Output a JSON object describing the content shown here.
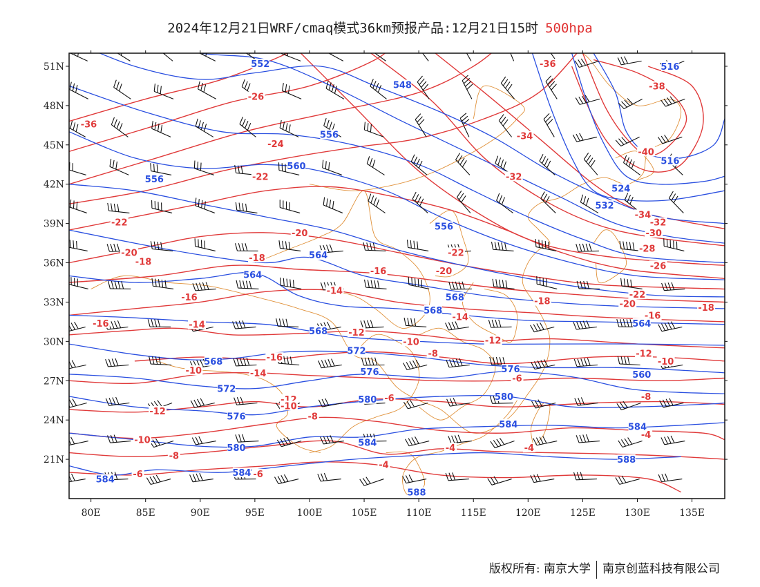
{
  "header": {
    "title": "2024年12月21日WRF/cmaq模式36km预报产品:12月21日15时",
    "level": "500hpa"
  },
  "colors": {
    "height_contour": "#2a4fe0",
    "temperature_contour": "#e03a3a",
    "boundary": "#e0913a",
    "wind_barb": "#111111",
    "level_text": "#e03030"
  },
  "map": {
    "lon_range": [
      78,
      138
    ],
    "lat_range": [
      18,
      52
    ],
    "lon_ticks": [
      {
        "lon": 80,
        "label": "80E"
      },
      {
        "lon": 85,
        "label": "85E"
      },
      {
        "lon": 90,
        "label": "90E"
      },
      {
        "lon": 95,
        "label": "95E"
      },
      {
        "lon": 100,
        "label": "100E"
      },
      {
        "lon": 105,
        "label": "105E"
      },
      {
        "lon": 110,
        "label": "110E"
      },
      {
        "lon": 115,
        "label": "115E"
      },
      {
        "lon": 120,
        "label": "120E"
      },
      {
        "lon": 125,
        "label": "125E"
      },
      {
        "lon": 130,
        "label": "130E"
      },
      {
        "lon": 135,
        "label": "135E"
      }
    ],
    "lat_ticks": [
      {
        "lat": 51,
        "label": "51N"
      },
      {
        "lat": 48,
        "label": "48N"
      },
      {
        "lat": 45,
        "label": "45N"
      },
      {
        "lat": 42,
        "label": "42N"
      },
      {
        "lat": 39,
        "label": "39N"
      },
      {
        "lat": 36,
        "label": "36N"
      },
      {
        "lat": 33,
        "label": "33N"
      },
      {
        "lat": 30,
        "label": "30N"
      },
      {
        "lat": 27,
        "label": "27N"
      },
      {
        "lat": 24,
        "label": "24N"
      },
      {
        "lat": 21,
        "label": "21N"
      }
    ],
    "height_labels": [
      {
        "text": "552",
        "lon": 95.5,
        "lat": 51.2
      },
      {
        "text": "548",
        "lon": 108.5,
        "lat": 49.6
      },
      {
        "text": "516",
        "lon": 133,
        "lat": 51.0
      },
      {
        "text": "556",
        "lon": 101.8,
        "lat": 45.8
      },
      {
        "text": "560",
        "lon": 98.8,
        "lat": 43.4
      },
      {
        "text": "556",
        "lon": 85.8,
        "lat": 42.4
      },
      {
        "text": "516",
        "lon": 133,
        "lat": 43.8
      },
      {
        "text": "524",
        "lon": 128.5,
        "lat": 41.7
      },
      {
        "text": "532",
        "lon": 127,
        "lat": 40.4
      },
      {
        "text": "556",
        "lon": 112.3,
        "lat": 38.8
      },
      {
        "text": "564",
        "lon": 100.8,
        "lat": 36.6
      },
      {
        "text": "564",
        "lon": 94.8,
        "lat": 35.1
      },
      {
        "text": "568",
        "lon": 111.3,
        "lat": 32.4
      },
      {
        "text": "568",
        "lon": 100.8,
        "lat": 30.8
      },
      {
        "text": "572",
        "lon": 104.3,
        "lat": 29.3
      },
      {
        "text": "568",
        "lon": 91.2,
        "lat": 28.5
      },
      {
        "text": "576",
        "lon": 105.5,
        "lat": 27.7
      },
      {
        "text": "576",
        "lon": 118.4,
        "lat": 27.9
      },
      {
        "text": "572",
        "lon": 92.4,
        "lat": 26.4
      },
      {
        "text": "580",
        "lon": 105.3,
        "lat": 25.6
      },
      {
        "text": "580",
        "lon": 117.8,
        "lat": 25.8
      },
      {
        "text": "576",
        "lon": 93.3,
        "lat": 24.3
      },
      {
        "text": "584",
        "lon": 118.2,
        "lat": 23.7
      },
      {
        "text": "584",
        "lon": 130.0,
        "lat": 23.5
      },
      {
        "text": "580",
        "lon": 93.3,
        "lat": 21.9
      },
      {
        "text": "584",
        "lon": 105.3,
        "lat": 22.3
      },
      {
        "text": "588",
        "lon": 129.0,
        "lat": 21.0
      },
      {
        "text": "584",
        "lon": 81.3,
        "lat": 19.5
      },
      {
        "text": "584",
        "lon": 93.8,
        "lat": 20.0
      },
      {
        "text": "588",
        "lon": 109.8,
        "lat": 18.5
      },
      {
        "text": "564",
        "lon": 130.4,
        "lat": 31.4
      },
      {
        "text": "560",
        "lon": 130.4,
        "lat": 27.5
      },
      {
        "text": "568",
        "lon": 113.3,
        "lat": 33.4
      }
    ],
    "temperature_labels": [
      {
        "text": "-36",
        "lon": 121.8,
        "lat": 51.2
      },
      {
        "text": "-38",
        "lon": 131.8,
        "lat": 49.5
      },
      {
        "text": "-26",
        "lon": 95.1,
        "lat": 48.7
      },
      {
        "text": "-36",
        "lon": 79.8,
        "lat": 46.6
      },
      {
        "text": "-24",
        "lon": 96.9,
        "lat": 45.1
      },
      {
        "text": "-34",
        "lon": 119.7,
        "lat": 45.7
      },
      {
        "text": "-40",
        "lon": 130.8,
        "lat": 44.5
      },
      {
        "text": "-22",
        "lon": 95.5,
        "lat": 42.6
      },
      {
        "text": "-32",
        "lon": 118.7,
        "lat": 42.6
      },
      {
        "text": "-22",
        "lon": 82.6,
        "lat": 39.1
      },
      {
        "text": "-20",
        "lon": 99.1,
        "lat": 38.3
      },
      {
        "text": "-20",
        "lon": 83.5,
        "lat": 36.8
      },
      {
        "text": "-18",
        "lon": 84.8,
        "lat": 36.1
      },
      {
        "text": "-18",
        "lon": 95.2,
        "lat": 36.4
      },
      {
        "text": "-22",
        "lon": 113.4,
        "lat": 36.8
      },
      {
        "text": "-20",
        "lon": 112.3,
        "lat": 35.4
      },
      {
        "text": "-16",
        "lon": 106.3,
        "lat": 35.4
      },
      {
        "text": "-14",
        "lon": 102.3,
        "lat": 33.9
      },
      {
        "text": "-16",
        "lon": 89.0,
        "lat": 33.4
      },
      {
        "text": "-18",
        "lon": 121.3,
        "lat": 33.1
      },
      {
        "text": "-16",
        "lon": 80.9,
        "lat": 31.4
      },
      {
        "text": "-14",
        "lon": 89.7,
        "lat": 31.3
      },
      {
        "text": "-14",
        "lon": 113.8,
        "lat": 31.9
      },
      {
        "text": "-12",
        "lon": 104.3,
        "lat": 30.7
      },
      {
        "text": "-10",
        "lon": 109.3,
        "lat": 30.0
      },
      {
        "text": "-12",
        "lon": 116.8,
        "lat": 30.1
      },
      {
        "text": "-8",
        "lon": 111.3,
        "lat": 29.1
      },
      {
        "text": "-16",
        "lon": 96.8,
        "lat": 28.8
      },
      {
        "text": "-14",
        "lon": 95.3,
        "lat": 27.6
      },
      {
        "text": "-10",
        "lon": 89.4,
        "lat": 27.8
      },
      {
        "text": "-6",
        "lon": 119.0,
        "lat": 27.2
      },
      {
        "text": "-12",
        "lon": 98.1,
        "lat": 25.6
      },
      {
        "text": "-10",
        "lon": 98.1,
        "lat": 25.1
      },
      {
        "text": "-6",
        "lon": 107.3,
        "lat": 25.7
      },
      {
        "text": "-12",
        "lon": 86.1,
        "lat": 24.7
      },
      {
        "text": "-8",
        "lon": 100.3,
        "lat": 24.3
      },
      {
        "text": "-10",
        "lon": 84.7,
        "lat": 22.5
      },
      {
        "text": "-4",
        "lon": 112.9,
        "lat": 21.9
      },
      {
        "text": "-4",
        "lon": 120.1,
        "lat": 21.9
      },
      {
        "text": "-8",
        "lon": 87.6,
        "lat": 21.3
      },
      {
        "text": "-6",
        "lon": 84.3,
        "lat": 19.9
      },
      {
        "text": "-4",
        "lon": 106.8,
        "lat": 20.6
      },
      {
        "text": "-6",
        "lon": 95.3,
        "lat": 19.9
      },
      {
        "text": "-26",
        "lon": 131.9,
        "lat": 35.8
      },
      {
        "text": "-28",
        "lon": 130.9,
        "lat": 37.1
      },
      {
        "text": "-30",
        "lon": 131.5,
        "lat": 38.3
      },
      {
        "text": "-32",
        "lon": 131.9,
        "lat": 39.1
      },
      {
        "text": "-34",
        "lon": 130.5,
        "lat": 39.7
      },
      {
        "text": "-22",
        "lon": 130.0,
        "lat": 33.6
      },
      {
        "text": "-20",
        "lon": 129.1,
        "lat": 32.9
      },
      {
        "text": "-18",
        "lon": 136.3,
        "lat": 32.6
      },
      {
        "text": "-16",
        "lon": 131.4,
        "lat": 32.0
      },
      {
        "text": "-12",
        "lon": 130.6,
        "lat": 29.1
      },
      {
        "text": "-10",
        "lon": 132.6,
        "lat": 28.5
      },
      {
        "text": "-8",
        "lon": 130.8,
        "lat": 25.8
      },
      {
        "text": "-4",
        "lon": 130.8,
        "lat": 22.9
      }
    ]
  },
  "footer": {
    "copyright_label": "版权所有:",
    "owner_1": "南京大学",
    "owner_2": "南京创蓝科技有限公司"
  }
}
